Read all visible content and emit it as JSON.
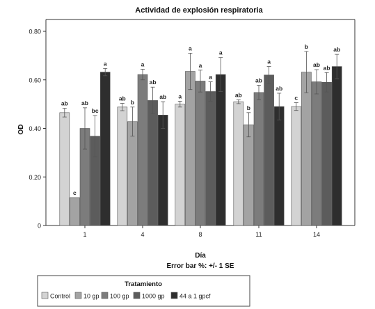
{
  "chart_data": {
    "type": "bar",
    "title": "Actividad de explosión respiratoria",
    "xlabel": "Día",
    "xlabel_note": "Error bar %: +/- 1 SE",
    "ylabel": "OD",
    "ylim": [
      0,
      0.85
    ],
    "yticks": [
      "0",
      "0.20",
      "0.40",
      "0.60",
      "0.80"
    ],
    "ytick_values": [
      0,
      0.2,
      0.4,
      0.6,
      0.8
    ],
    "categories": [
      "1",
      "4",
      "8",
      "11",
      "14"
    ],
    "legend_title": "Tratamiento",
    "legend_placement": "bottom-left",
    "grid": false,
    "series": [
      {
        "name": "Control",
        "color": "#d3d3d3",
        "values": [
          0.465,
          0.488,
          0.5,
          0.51,
          0.49
        ],
        "errors": [
          0.018,
          0.015,
          0.012,
          0.008,
          0.016
        ],
        "letters": [
          "ab",
          "ab",
          "a",
          "ab",
          "c"
        ]
      },
      {
        "name": "10 gp",
        "color": "#a3a3a3",
        "values": [
          0.115,
          0.428,
          0.635,
          0.415,
          0.632
        ],
        "errors": [
          0,
          0.06,
          0.075,
          0.05,
          0.085
        ],
        "letters": [
          "c",
          "b",
          "a",
          "b",
          "b"
        ]
      },
      {
        "name": "100 gp",
        "color": "#7c7c7c",
        "values": [
          0.4,
          0.622,
          0.595,
          0.548,
          0.592
        ],
        "errors": [
          0.085,
          0.022,
          0.045,
          0.03,
          0.05
        ],
        "letters": [
          "ab",
          "a",
          "a",
          "ab",
          "ab"
        ]
      },
      {
        "name": "1000 gp",
        "color": "#5c5c5c",
        "values": [
          0.368,
          0.515,
          0.552,
          0.62,
          0.59
        ],
        "errors": [
          0.085,
          0.055,
          0.04,
          0.035,
          0.04
        ],
        "letters": [
          "bc",
          "ab",
          "a",
          "a",
          "ab"
        ]
      },
      {
        "name": "44 a 1 gpcf",
        "color": "#2e2e2e",
        "values": [
          0.632,
          0.455,
          0.622,
          0.49,
          0.655
        ],
        "errors": [
          0.015,
          0.055,
          0.07,
          0.055,
          0.05
        ],
        "letters": [
          "a",
          "ab",
          "a",
          "ab",
          "ab"
        ]
      }
    ]
  }
}
